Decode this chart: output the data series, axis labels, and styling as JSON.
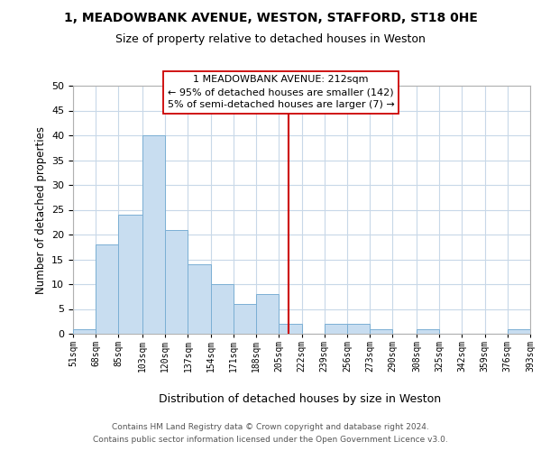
{
  "title": "1, MEADOWBANK AVENUE, WESTON, STAFFORD, ST18 0HE",
  "subtitle": "Size of property relative to detached houses in Weston",
  "xlabel": "Distribution of detached houses by size in Weston",
  "ylabel": "Number of detached properties",
  "bar_color": "#c8ddf0",
  "bar_edge_color": "#7bafd4",
  "bin_edges": [
    51,
    68,
    85,
    103,
    120,
    137,
    154,
    171,
    188,
    205,
    222,
    239,
    256,
    273,
    290,
    308,
    325,
    342,
    359,
    376,
    393
  ],
  "bar_heights": [
    1,
    18,
    24,
    40,
    21,
    14,
    10,
    6,
    8,
    2,
    0,
    2,
    2,
    1,
    0,
    1,
    0,
    0,
    0,
    1
  ],
  "tick_labels": [
    "51sqm",
    "68sqm",
    "85sqm",
    "103sqm",
    "120sqm",
    "137sqm",
    "154sqm",
    "171sqm",
    "188sqm",
    "205sqm",
    "222sqm",
    "239sqm",
    "256sqm",
    "273sqm",
    "290sqm",
    "308sqm",
    "325sqm",
    "342sqm",
    "359sqm",
    "376sqm",
    "393sqm"
  ],
  "vline_x": 212,
  "vline_color": "#cc0000",
  "ylim": [
    0,
    50
  ],
  "yticks": [
    0,
    5,
    10,
    15,
    20,
    25,
    30,
    35,
    40,
    45,
    50
  ],
  "annotation_title": "1 MEADOWBANK AVENUE: 212sqm",
  "annotation_line1": "← 95% of detached houses are smaller (142)",
  "annotation_line2": "5% of semi-detached houses are larger (7) →",
  "footer_line1": "Contains HM Land Registry data © Crown copyright and database right 2024.",
  "footer_line2": "Contains public sector information licensed under the Open Government Licence v3.0.",
  "background_color": "#ffffff",
  "grid_color": "#c8d8e8"
}
